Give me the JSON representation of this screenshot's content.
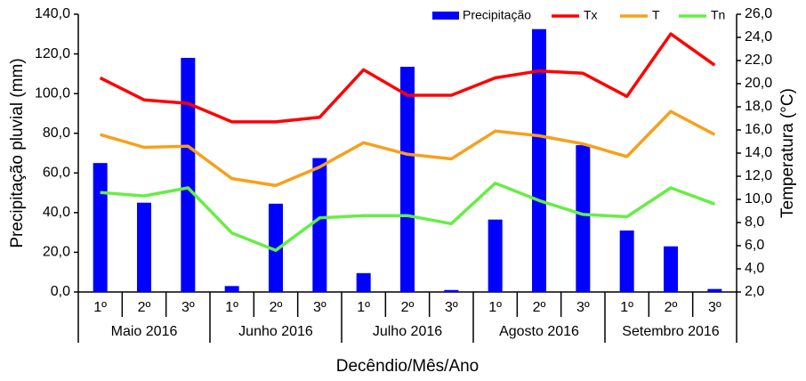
{
  "chart_data": {
    "type": "bar",
    "y_label": "Precipitação pluvial (mm)",
    "y2_label": "Temperatura (°C)",
    "x_label": "Decêndio/Mês/Ano",
    "categories": [
      "1º",
      "2º",
      "3º",
      "1º",
      "2º",
      "3º",
      "1º",
      "2º",
      "3º",
      "1º",
      "2º",
      "3º",
      "1º",
      "2º",
      "3º"
    ],
    "groups": [
      "Maio 2016",
      "Junho 2016",
      "Julho 2016",
      "Agosto 2016",
      "Setembro 2016"
    ],
    "ylim": [
      0,
      140
    ],
    "yticks": [
      {
        "value": 0,
        "label": "0,0"
      },
      {
        "value": 20,
        "label": "20,0"
      },
      {
        "value": 40,
        "label": "40,0"
      },
      {
        "value": 60,
        "label": "60,0"
      },
      {
        "value": 80,
        "label": "80,0"
      },
      {
        "value": 100,
        "label": "100,0"
      },
      {
        "value": 120,
        "label": "120,0"
      },
      {
        "value": 140,
        "label": "140,0"
      }
    ],
    "y2lim": [
      2,
      26
    ],
    "y2ticks": [
      {
        "value": 2,
        "label": "2,0"
      },
      {
        "value": 4,
        "label": "4,0"
      },
      {
        "value": 6,
        "label": "6,0"
      },
      {
        "value": 8,
        "label": "8,0"
      },
      {
        "value": 10,
        "label": "10,0"
      },
      {
        "value": 12,
        "label": "12,0"
      },
      {
        "value": 14,
        "label": "14,0"
      },
      {
        "value": 16,
        "label": "16,0"
      },
      {
        "value": 18,
        "label": "18,0"
      },
      {
        "value": 20,
        "label": "20,0"
      },
      {
        "value": 22,
        "label": "22,0"
      },
      {
        "value": 24,
        "label": "24,0"
      },
      {
        "value": 26,
        "label": "26,0"
      }
    ],
    "series": [
      {
        "name": "Precipitação",
        "type": "bar",
        "color": "#0000ff",
        "values": [
          65,
          45,
          118,
          3,
          44.5,
          67.5,
          9.5,
          113.5,
          1,
          36.5,
          132.5,
          74,
          31,
          23,
          1.5
        ]
      },
      {
        "name": "Tx",
        "type": "line",
        "axis": "y2",
        "color": "#ff0000",
        "values": [
          20.5,
          18.6,
          18.3,
          16.7,
          16.7,
          17.1,
          21.2,
          19.0,
          19.0,
          20.5,
          21.1,
          20.9,
          18.9,
          24.3,
          21.6
        ]
      },
      {
        "name": "T",
        "type": "line",
        "axis": "y2",
        "color": "#f7a01c",
        "values": [
          15.6,
          14.5,
          14.6,
          11.8,
          11.2,
          12.8,
          14.9,
          13.9,
          13.5,
          15.9,
          15.5,
          14.8,
          13.7,
          17.6,
          15.6
        ]
      },
      {
        "name": "Tn",
        "type": "line",
        "axis": "y2",
        "color": "#66ee44",
        "values": [
          10.6,
          10.3,
          11.0,
          7.1,
          5.6,
          8.4,
          8.6,
          8.6,
          7.9,
          11.4,
          9.9,
          8.7,
          8.5,
          11.0,
          9.6
        ]
      }
    ]
  }
}
